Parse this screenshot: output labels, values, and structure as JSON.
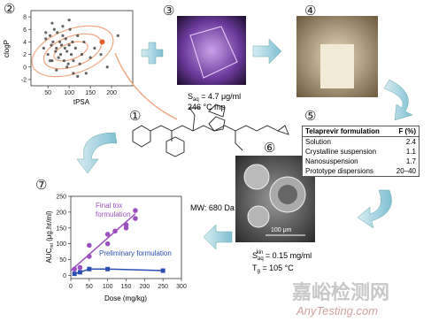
{
  "panel_numbers": [
    "①",
    "②",
    "③",
    "④",
    "⑤",
    "⑥",
    "⑦"
  ],
  "scatter": {
    "type": "scatter",
    "x_label": "tPSA",
    "y_label": "clogP",
    "xlim": [
      10,
      250
    ],
    "ylim": [
      -3,
      9
    ],
    "xticks": [
      50,
      100,
      150,
      200
    ],
    "yticks": [
      -2,
      0,
      2,
      4,
      6,
      8
    ],
    "color": "#333333",
    "x": [
      40,
      45,
      50,
      55,
      58,
      60,
      62,
      65,
      68,
      70,
      72,
      75,
      78,
      80,
      82,
      85,
      88,
      90,
      92,
      95,
      98,
      100,
      102,
      105,
      108,
      110,
      115,
      120,
      125,
      130,
      135,
      140,
      150,
      160,
      175,
      190,
      215,
      60,
      70,
      85,
      95,
      110,
      45,
      55,
      100,
      120
    ],
    "y": [
      3,
      4.5,
      2,
      5,
      3.5,
      1,
      4,
      6,
      2.5,
      3,
      5.5,
      1.5,
      4,
      2,
      3.5,
      5,
      1,
      3,
      4.5,
      2.5,
      0.5,
      3.5,
      6,
      2,
      4,
      1,
      3,
      5,
      0.5,
      2,
      4,
      -1,
      1.5,
      3,
      2,
      0,
      5,
      7,
      -0.5,
      6.5,
      0,
      -1,
      5.5,
      1,
      7.5,
      -1.5
    ],
    "highlight": {
      "x": 178,
      "y": 4,
      "color": "#e0602a"
    }
  },
  "crystal": {
    "solubility": {
      "symbol": "S",
      "sub": "aq",
      "rest": " = 4.7 μg/ml"
    },
    "melting_point": "246 °C mp"
  },
  "molecule": {
    "mw": "MW: 680 Da"
  },
  "table": {
    "header": [
      "Telaprevir formulation",
      "F (%)"
    ],
    "rows": [
      [
        "Solution",
        "2.4"
      ],
      [
        "Crystalline suspension",
        "1.1"
      ],
      [
        "Nanosuspension",
        "1.7"
      ],
      [
        "Prototype dispersions",
        "20–40"
      ]
    ]
  },
  "sem": {
    "scale_bar": "100 μm",
    "solubility": {
      "symbol": "S",
      "sub": "aq",
      "sup": "kin",
      "rest": " = 0.15 mg/ml"
    },
    "tg": {
      "symbol": "T",
      "sub": "g",
      "rest": " = 105 °C"
    }
  },
  "pk_chart": {
    "type": "scatter",
    "x_label": "Dose (mg/kg)",
    "y_label": {
      "main": "AUC",
      "sub": "rel",
      "rest": " (μg.hr/ml)"
    },
    "xlim": [
      0,
      300
    ],
    "ylim": [
      -10,
      250
    ],
    "xticks": [
      0,
      50,
      100,
      150,
      200,
      250,
      300
    ],
    "yticks": [
      0,
      50,
      100,
      150,
      200,
      250
    ],
    "series": [
      {
        "name": "Final tox formulation",
        "color": "#9b4fc0",
        "x": [
          10,
          25,
          50,
          50,
          100,
          100,
          120,
          150,
          150,
          175,
          175
        ],
        "y": [
          20,
          25,
          95,
          60,
          100,
          130,
          140,
          160,
          150,
          180,
          205
        ]
      },
      {
        "name": "Preliminary formulation",
        "color": "#2a4fb0",
        "x": [
          10,
          25,
          50,
          100,
          250
        ],
        "y": [
          5,
          10,
          20,
          20,
          15
        ]
      }
    ],
    "fit_line": {
      "x": [
        0,
        175
      ],
      "y": [
        15,
        195
      ]
    }
  },
  "watermark": {
    "cn": "嘉峪检测网",
    "en": "AnyTesting.com"
  }
}
